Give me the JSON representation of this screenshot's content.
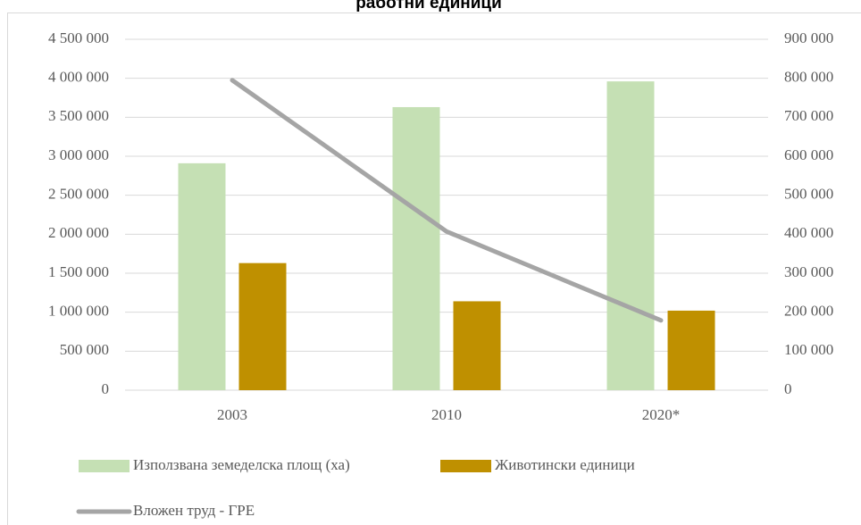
{
  "chart_data": {
    "type": "bar_line",
    "title": "работни единици",
    "categories": [
      "2003",
      "2010",
      "2020*"
    ],
    "series": [
      {
        "name": "Използвана земеделска площ (ха)",
        "color": "#c5e0b4",
        "type": "bar",
        "values": [
          2910000,
          3630000,
          3960000
        ]
      },
      {
        "name": "Животински единици",
        "color": "#bf9000",
        "type": "bar",
        "values": [
          1630000,
          1140000,
          1020000
        ]
      },
      {
        "name": "Вложен труд - ГРЕ",
        "color": "#a5a5a5",
        "type": "line",
        "axis": "y2",
        "values": [
          795000,
          407000,
          179000
        ]
      }
    ],
    "ylim": [
      0,
      4500000
    ],
    "yticks": [
      0,
      {
        "value": 500000,
        "label": "500 000"
      },
      {
        "value": 1000000,
        "label": "1 000 000"
      },
      {
        "value": 1500000,
        "label": "1 500 000"
      },
      {
        "value": 2000000,
        "label": "2 000 000"
      },
      {
        "value": 2500000,
        "label": "2 500 000"
      },
      {
        "value": 3000000,
        "label": "3 000 000"
      },
      {
        "value": 3500000,
        "label": "3 500 000"
      },
      {
        "value": 4000000,
        "label": "4 000 000"
      },
      {
        "value": 4500000,
        "label": "4 500 000"
      }
    ],
    "y2lim": [
      0,
      900000
    ],
    "y2ticks": [
      0,
      {
        "value": 100000,
        "label": "100 000"
      },
      {
        "value": 200000,
        "label": "200 000"
      },
      {
        "value": 300000,
        "label": "300 000"
      },
      {
        "value": 400000,
        "label": "400 000"
      },
      {
        "value": 500000,
        "label": "500 000"
      },
      {
        "value": 600000,
        "label": "600 000"
      },
      {
        "value": 700000,
        "label": "700 000"
      },
      {
        "value": 800000,
        "label": "800 000"
      },
      {
        "value": 900000,
        "label": "900 000"
      }
    ],
    "grid": true,
    "legend": "bottom-left"
  }
}
